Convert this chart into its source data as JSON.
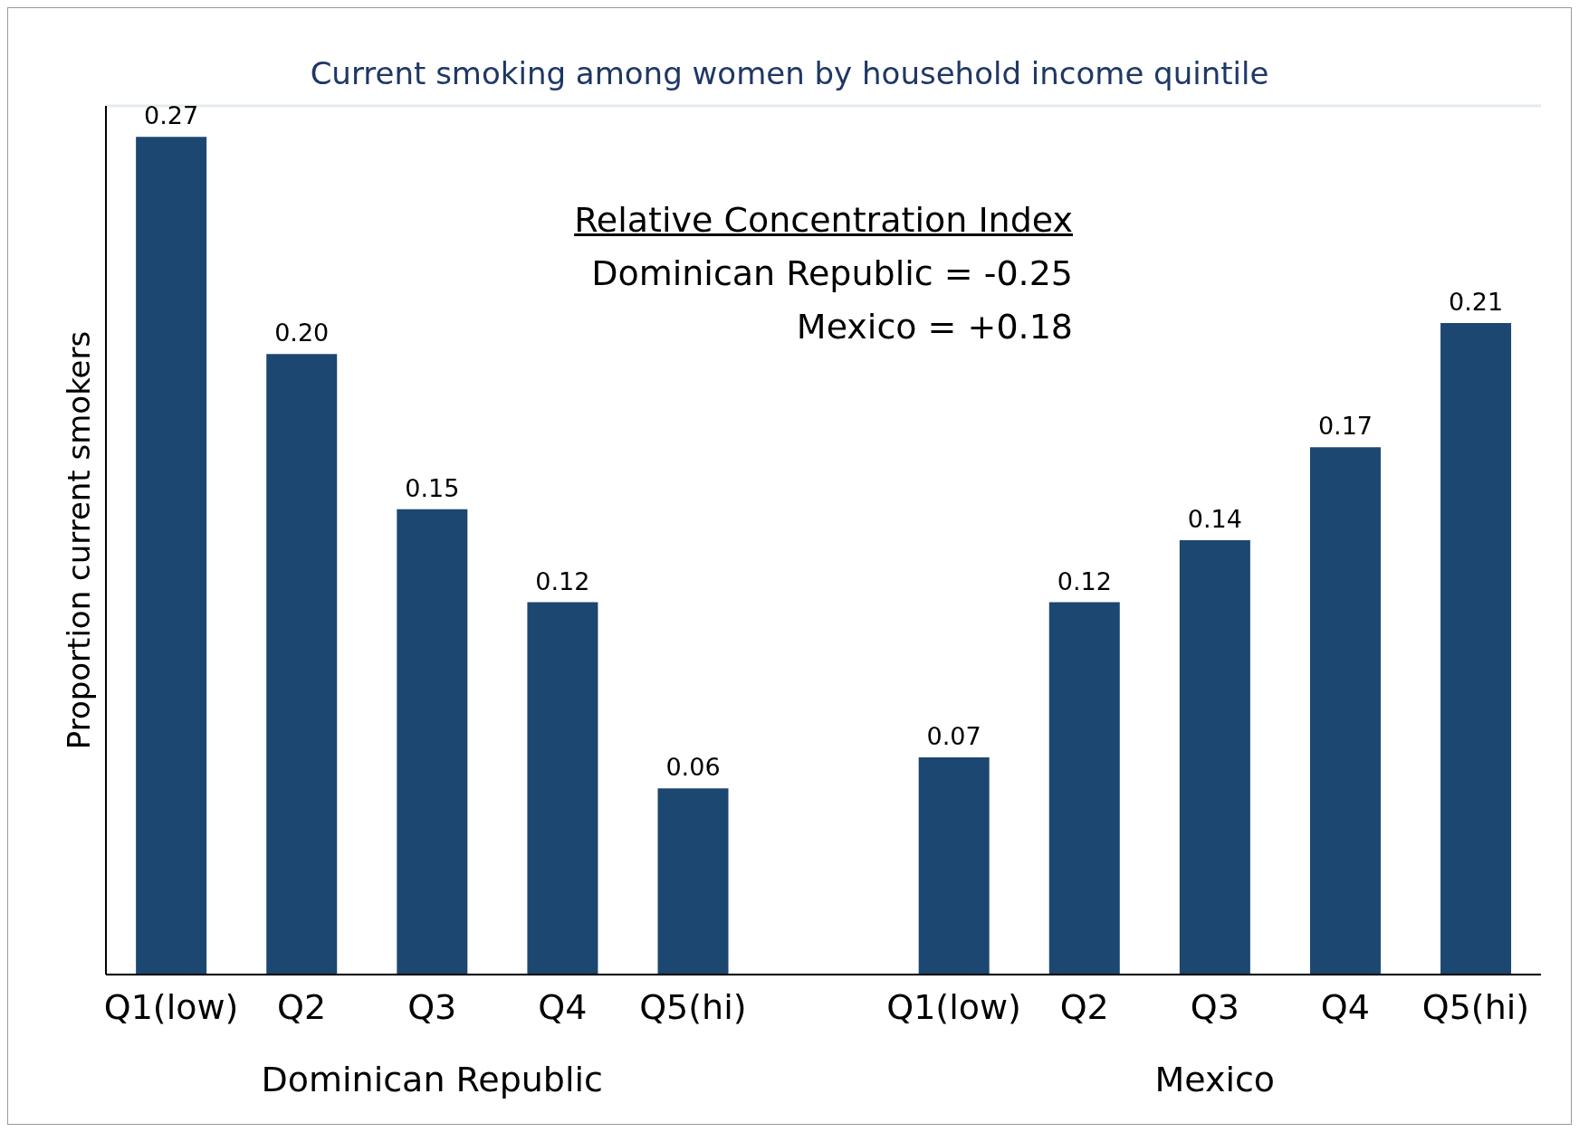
{
  "chart_data": {
    "type": "bar",
    "title": "Current smoking among women by household income quintile",
    "ylabel": "Proportion current smokers",
    "categories": [
      "Q1(low)",
      "Q2",
      "Q3",
      "Q4",
      "Q5(hi)",
      null,
      "Q1(low)",
      "Q2",
      "Q3",
      "Q4",
      "Q5(hi)"
    ],
    "values": [
      0.27,
      0.2,
      0.15,
      0.12,
      0.06,
      null,
      0.07,
      0.12,
      0.14,
      0.17,
      0.21
    ],
    "color": "#1c4770",
    "value_labels": [
      "0.27",
      "0.20",
      "0.15",
      "0.12",
      "0.06",
      null,
      "0.07",
      "0.12",
      "0.14",
      "0.17",
      "0.21"
    ],
    "ylim": [
      0,
      0.28
    ],
    "grid": "y",
    "tick_labels": "x",
    "annotations": [
      "Relative Concentration Index",
      "Dominican Republic = -0.25",
      "Mexico = +0.18",
      "Dominican Republic",
      "Mexico"
    ]
  }
}
